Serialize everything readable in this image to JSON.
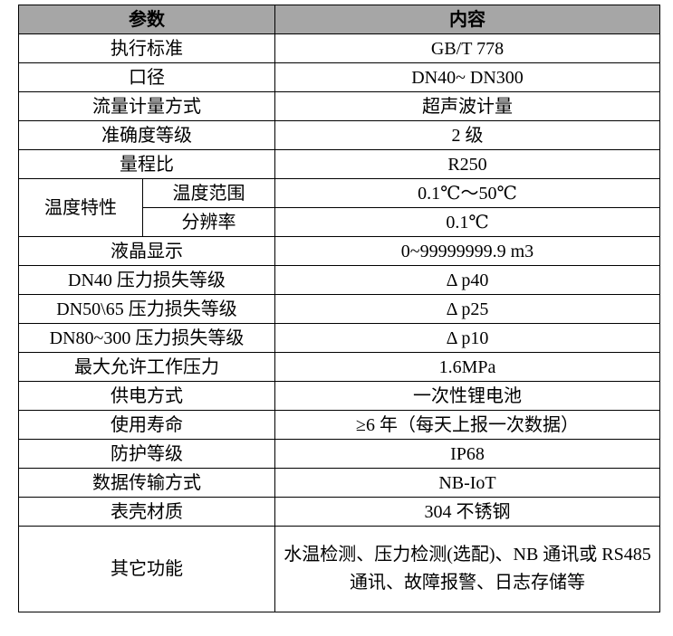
{
  "header": {
    "param": "参数",
    "content": "内容"
  },
  "rows": [
    {
      "param": "执行标准",
      "value": "GB/T 778"
    },
    {
      "param": "口径",
      "value": "DN40~ DN300"
    },
    {
      "param": "流量计量方式",
      "value": "超声波计量"
    },
    {
      "param": "准确度等级",
      "value": "2 级"
    },
    {
      "param": "量程比",
      "value": "R250"
    }
  ],
  "temperature": {
    "param": "温度特性",
    "sub": [
      {
        "param": "温度范围",
        "value": "0.1℃～50℃"
      },
      {
        "param": "分辨率",
        "value": "0.1℃"
      }
    ]
  },
  "rows2": [
    {
      "param": "液晶显示",
      "value": "0~99999999.9 m3"
    },
    {
      "param": "DN40 压力损失等级",
      "value": "Δ p40"
    },
    {
      "param": "DN50\\65 压力损失等级",
      "value": "Δ p25"
    },
    {
      "param": "DN80~300 压力损失等级",
      "value": "Δ p10"
    },
    {
      "param": "最大允许工作压力",
      "value": "1.6MPa"
    },
    {
      "param": "供电方式",
      "value": "一次性锂电池"
    },
    {
      "param": "使用寿命",
      "value": "≥6 年（每天上报一次数据）"
    },
    {
      "param": "防护等级",
      "value": "IP68"
    },
    {
      "param": "数据传输方式",
      "value": "NB-IoT"
    },
    {
      "param": "表壳材质",
      "value": "304 不锈钢"
    }
  ],
  "other": {
    "param": "其它功能",
    "value": "水温检测、压力检测(选配)、NB 通讯或 RS485 通讯、故障报警、日志存储等"
  }
}
